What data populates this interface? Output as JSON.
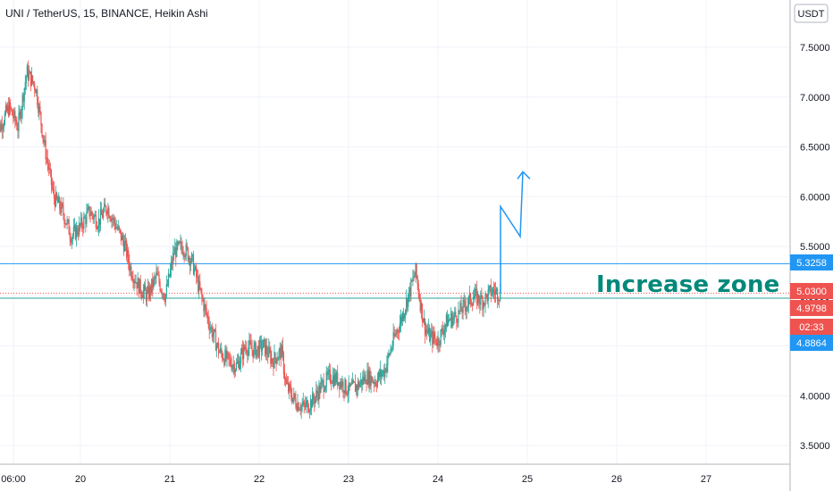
{
  "header": {
    "title": "UNI / TetherUS, 15, BINANCE, Heikin Ashi",
    "currency": "USDT"
  },
  "annotation": "Increase zone",
  "price_tags": [
    {
      "label": "5.3258",
      "value": 5.3258,
      "color": "#2196f3"
    },
    {
      "label": "5.0300",
      "value": 5.03,
      "color": "#ef5350"
    },
    {
      "label": "4.9798",
      "value": 4.9798,
      "color": "#ef5350"
    },
    {
      "label": "02:33",
      "value": 4.9798,
      "color": "#ef5350"
    },
    {
      "label": "4.8864",
      "value": 4.8864,
      "color": "#2196f3"
    }
  ],
  "chart_data": {
    "type": "candlestick",
    "title": "UNI / TetherUS, 15, BINANCE, Heikin Ashi",
    "ylim": [
      3.3,
      7.95
    ],
    "xlim": [
      19.0,
      28.0
    ],
    "y_ticks": [
      "7.5000",
      "7.0000",
      "6.5000",
      "6.0000",
      "5.5000",
      "5.0000",
      "4.5000",
      "4.0000",
      "3.5000"
    ],
    "x_ticks": [
      {
        "label": "06:00",
        "x": 19.25
      },
      {
        "label": "20",
        "x": 20
      },
      {
        "label": "21",
        "x": 21
      },
      {
        "label": "22",
        "x": 22
      },
      {
        "label": "23",
        "x": 23
      },
      {
        "label": "24",
        "x": 24
      },
      {
        "label": "25",
        "x": 25
      },
      {
        "label": "26",
        "x": 26
      },
      {
        "label": "27",
        "x": 27
      }
    ],
    "price_path": [
      [
        19.05,
        6.6
      ],
      [
        19.2,
        6.9
      ],
      [
        19.3,
        6.7
      ],
      [
        19.4,
        7.25
      ],
      [
        19.5,
        7.1
      ],
      [
        19.6,
        6.5
      ],
      [
        19.7,
        6.0
      ],
      [
        19.8,
        5.85
      ],
      [
        19.9,
        5.6
      ],
      [
        20.0,
        5.7
      ],
      [
        20.1,
        5.85
      ],
      [
        20.2,
        5.75
      ],
      [
        20.3,
        5.9
      ],
      [
        20.4,
        5.7
      ],
      [
        20.5,
        5.5
      ],
      [
        20.55,
        5.3
      ],
      [
        20.65,
        5.1
      ],
      [
        20.75,
        5.0
      ],
      [
        20.85,
        5.2
      ],
      [
        20.95,
        5.0
      ],
      [
        21.05,
        5.45
      ],
      [
        21.15,
        5.5
      ],
      [
        21.25,
        5.35
      ],
      [
        21.35,
        5.0
      ],
      [
        21.45,
        4.7
      ],
      [
        21.55,
        4.45
      ],
      [
        21.65,
        4.35
      ],
      [
        21.75,
        4.3
      ],
      [
        21.85,
        4.5
      ],
      [
        21.95,
        4.45
      ],
      [
        22.05,
        4.5
      ],
      [
        22.15,
        4.35
      ],
      [
        22.25,
        4.45
      ],
      [
        22.3,
        4.1
      ],
      [
        22.4,
        3.95
      ],
      [
        22.5,
        3.88
      ],
      [
        22.6,
        3.95
      ],
      [
        22.7,
        4.1
      ],
      [
        22.8,
        4.2
      ],
      [
        22.9,
        4.15
      ],
      [
        23.0,
        4.05
      ],
      [
        23.1,
        4.1
      ],
      [
        23.2,
        4.2
      ],
      [
        23.3,
        4.15
      ],
      [
        23.4,
        4.25
      ],
      [
        23.5,
        4.55
      ],
      [
        23.6,
        4.8
      ],
      [
        23.7,
        5.1
      ],
      [
        23.75,
        5.25
      ],
      [
        23.8,
        4.95
      ],
      [
        23.85,
        4.7
      ],
      [
        23.9,
        4.6
      ],
      [
        24.0,
        4.55
      ],
      [
        24.1,
        4.75
      ],
      [
        24.2,
        4.8
      ],
      [
        24.3,
        4.9
      ],
      [
        24.4,
        5.0
      ],
      [
        24.5,
        4.95
      ],
      [
        24.6,
        5.05
      ],
      [
        24.7,
        5.03
      ]
    ],
    "horizontal_levels": [
      {
        "value": 5.3258,
        "color": "#2196f3",
        "style": "solid"
      },
      {
        "value": 5.03,
        "color": "#ef5350",
        "style": "dotted"
      },
      {
        "value": 4.9798,
        "color": "#26a69a",
        "style": "solid"
      }
    ],
    "drawn_arrow": {
      "color": "#2196f3",
      "points": [
        [
          24.7,
          5.03
        ],
        [
          24.7,
          5.55
        ],
        [
          24.7,
          5.9
        ],
        [
          24.92,
          5.6
        ],
        [
          24.95,
          6.25
        ]
      ]
    },
    "colors": {
      "up": "#26a69a",
      "down": "#ef5350"
    }
  }
}
